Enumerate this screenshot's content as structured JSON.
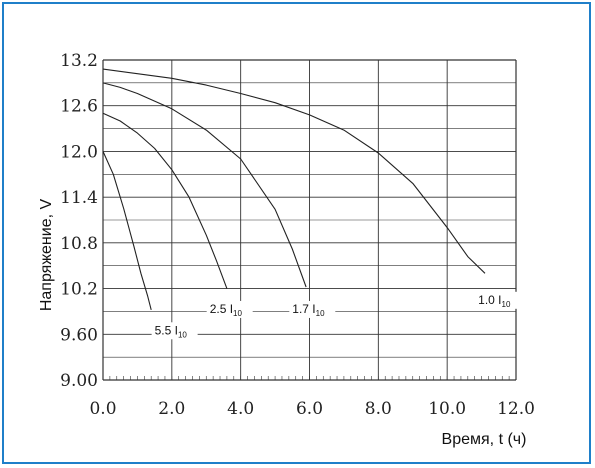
{
  "chart_data": {
    "type": "line",
    "xlabel": "Время, t (ч)",
    "ylabel": "Напряжение, V",
    "xlim": [
      0,
      12
    ],
    "ylim": [
      9.0,
      13.2
    ],
    "grid": true,
    "x_ticks": [
      "0.0",
      "2.0",
      "4.0",
      "6.0",
      "8.0",
      "10.0",
      "12.0"
    ],
    "y_ticks": [
      "9.00",
      "9.60",
      "10.2",
      "10.8",
      "11.4",
      "12.0",
      "12.6",
      "13.2"
    ],
    "series": [
      {
        "name": "1.0 I10",
        "label_main": "1.0 I",
        "label_sub": "10",
        "label_at": [
          10.9,
          10.0
        ],
        "x": [
          0.0,
          1.0,
          2.0,
          3.0,
          4.0,
          5.0,
          6.0,
          7.0,
          8.0,
          9.0,
          10.0,
          10.6,
          11.1
        ],
        "y": [
          13.08,
          13.02,
          12.96,
          12.87,
          12.76,
          12.64,
          12.48,
          12.28,
          11.98,
          11.58,
          11.0,
          10.62,
          10.4
        ]
      },
      {
        "name": "1.7 I10",
        "label_main": "1.7 I",
        "label_sub": "10",
        "label_at": [
          5.5,
          9.88
        ],
        "x": [
          0.0,
          0.5,
          1.0,
          2.0,
          3.0,
          4.0,
          5.0,
          5.5,
          5.9
        ],
        "y": [
          12.9,
          12.84,
          12.76,
          12.56,
          12.28,
          11.9,
          11.24,
          10.72,
          10.22
        ]
      },
      {
        "name": "2.5 I10",
        "label_main": "2.5 I",
        "label_sub": "10",
        "label_at": [
          3.1,
          9.88
        ],
        "x": [
          0.0,
          0.5,
          1.0,
          1.5,
          2.0,
          2.5,
          3.0,
          3.3,
          3.6
        ],
        "y": [
          12.5,
          12.4,
          12.24,
          12.04,
          11.76,
          11.4,
          10.9,
          10.56,
          10.2
        ]
      },
      {
        "name": "5.5 I10",
        "label_main": "5.5 I",
        "label_sub": "10",
        "label_at": [
          1.5,
          9.6
        ],
        "x": [
          0.0,
          0.3,
          0.6,
          0.9,
          1.1,
          1.3,
          1.4
        ],
        "y": [
          12.0,
          11.7,
          11.25,
          10.75,
          10.4,
          10.1,
          9.92
        ]
      }
    ]
  },
  "colors": {
    "frame": "#1f7fc9",
    "curve": "#222222",
    "grid": "#333333"
  }
}
